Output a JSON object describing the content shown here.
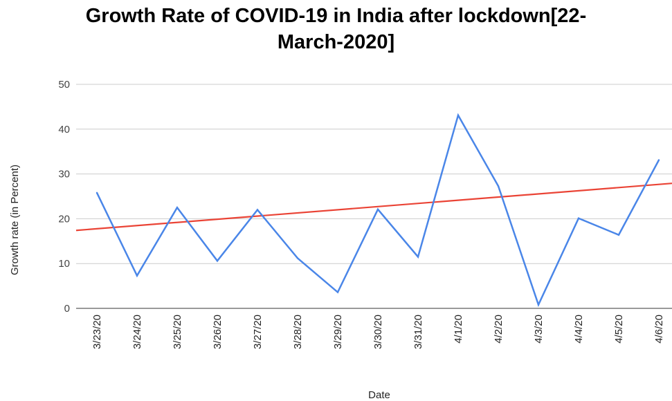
{
  "chart_data": {
    "type": "line",
    "title_line1": "Growth Rate of COVID-19 in India after lockdown[22-",
    "title_line2": "March-2020]",
    "xlabel": "Date",
    "ylabel": "Growth rate (in Percent)",
    "ylim": [
      0,
      50
    ],
    "yticks": [
      "0",
      "10",
      "20",
      "30",
      "40",
      "50"
    ],
    "grid": true,
    "legend": "none",
    "categories": [
      "3/23/20",
      "3/24/20",
      "3/25/20",
      "3/26/20",
      "3/27/20",
      "3/28/20",
      "3/29/20",
      "3/30/20",
      "3/31/20",
      "4/1/20",
      "4/2/20",
      "4/3/20",
      "4/4/20",
      "4/5/20",
      "4/6/20"
    ],
    "series": [
      {
        "values": [
          25.8,
          7.3,
          22.5,
          10.6,
          22.0,
          11.2,
          3.6,
          22.1,
          11.5,
          43.1,
          27.3,
          0.8,
          20.1,
          16.4,
          33.1
        ],
        "color": "#4a86e8"
      }
    ],
    "trendline": {
      "color": "#ea4335",
      "start_value": 17.4,
      "end_value": 27.9
    }
  }
}
